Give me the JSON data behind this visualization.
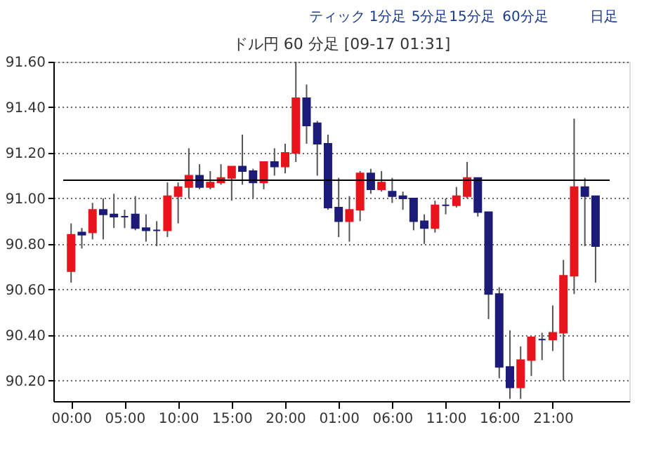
{
  "chart_data": {
    "type": "candlestick",
    "title": "ドル円 60 分足 [09-17 01:31]",
    "annotations": [
      "ティック",
      "1分足",
      "5分足",
      "15分足",
      "60分足",
      "日足"
    ],
    "categories": [
      "00:00",
      null,
      null,
      null,
      null,
      "05:00",
      null,
      null,
      null,
      null,
      "10:00",
      null,
      null,
      null,
      null,
      "15:00",
      null,
      null,
      null,
      null,
      "20:00",
      null,
      null,
      null,
      null,
      "01:00",
      null,
      null,
      null,
      null,
      "06:00",
      null,
      null,
      null,
      null,
      "11:00",
      null,
      null,
      null,
      null,
      "16:00",
      null,
      null,
      null,
      null,
      "21:00",
      null,
      null,
      null,
      null
    ],
    "ohlc": [
      [
        90.68,
        90.89,
        90.63,
        90.84
      ],
      [
        90.85,
        90.87,
        90.78,
        90.84
      ],
      [
        90.85,
        90.98,
        90.82,
        90.95
      ],
      [
        90.95,
        91.0,
        90.82,
        90.93
      ],
      [
        90.93,
        91.02,
        90.87,
        90.92
      ],
      [
        90.92,
        90.95,
        90.87,
        90.92
      ],
      [
        90.93,
        91.01,
        90.86,
        90.87
      ],
      [
        90.87,
        90.93,
        90.81,
        90.86
      ],
      [
        90.86,
        90.9,
        90.79,
        90.86
      ],
      [
        90.86,
        91.07,
        90.83,
        91.01
      ],
      [
        91.01,
        91.07,
        90.89,
        91.05
      ],
      [
        91.05,
        91.22,
        91.0,
        91.1
      ],
      [
        91.1,
        91.15,
        91.04,
        91.05
      ],
      [
        91.05,
        91.12,
        91.04,
        91.07
      ],
      [
        91.07,
        91.15,
        91.06,
        91.09
      ],
      [
        91.09,
        91.14,
        90.99,
        91.14
      ],
      [
        91.14,
        91.28,
        91.06,
        91.12
      ],
      [
        91.12,
        91.13,
        91.0,
        91.07
      ],
      [
        91.07,
        91.16,
        91.04,
        91.16
      ],
      [
        91.16,
        91.22,
        91.1,
        91.14
      ],
      [
        91.14,
        91.24,
        91.11,
        91.2
      ],
      [
        91.2,
        91.6,
        91.16,
        91.44
      ],
      [
        91.44,
        91.5,
        91.24,
        91.32
      ],
      [
        91.33,
        91.34,
        91.1,
        91.24
      ],
      [
        91.24,
        91.28,
        90.95,
        90.96
      ],
      [
        90.96,
        91.09,
        90.83,
        90.9
      ],
      [
        90.9,
        91.01,
        90.81,
        90.95
      ],
      [
        90.95,
        91.12,
        90.9,
        91.11
      ],
      [
        91.11,
        91.13,
        91.02,
        91.04
      ],
      [
        91.04,
        91.12,
        91.03,
        91.07
      ],
      [
        91.03,
        91.09,
        90.98,
        91.01
      ],
      [
        91.01,
        91.03,
        90.95,
        91.0
      ],
      [
        91.0,
        91.0,
        90.86,
        90.9
      ],
      [
        90.9,
        90.93,
        90.8,
        90.87
      ],
      [
        90.87,
        90.99,
        90.85,
        90.97
      ],
      [
        90.97,
        91.0,
        90.93,
        90.97
      ],
      [
        90.97,
        91.05,
        90.96,
        91.01
      ],
      [
        91.01,
        91.16,
        91.0,
        91.09
      ],
      [
        91.09,
        91.09,
        90.92,
        90.94
      ],
      [
        90.94,
        90.94,
        90.47,
        90.58
      ],
      [
        90.58,
        90.61,
        90.21,
        90.26
      ],
      [
        90.26,
        90.42,
        90.12,
        90.17
      ],
      [
        90.17,
        90.35,
        90.12,
        90.29
      ],
      [
        90.29,
        90.39,
        90.22,
        90.39
      ],
      [
        90.38,
        90.41,
        90.29,
        90.38
      ],
      [
        90.38,
        90.53,
        90.33,
        90.41
      ],
      [
        90.41,
        90.73,
        90.2,
        90.66
      ],
      [
        90.66,
        91.35,
        90.58,
        91.05
      ],
      [
        91.05,
        91.09,
        90.79,
        91.01
      ],
      [
        91.01,
        91.01,
        90.63,
        90.79
      ]
    ],
    "colors": [
      "#e8141c",
      "#1c1c78",
      "#e8141c",
      "#1c1c78",
      "#1c1c78",
      "#1c1c78",
      "#1c1c78",
      "#1c1c78",
      "#1c1c78",
      "#e8141c",
      "#e8141c",
      "#e8141c",
      "#1c1c78",
      "#e8141c",
      "#e8141c",
      "#e8141c",
      "#1c1c78",
      "#1c1c78",
      "#e8141c",
      "#1c1c78",
      "#e8141c",
      "#e8141c",
      "#1c1c78",
      "#1c1c78",
      "#1c1c78",
      "#1c1c78",
      "#e8141c",
      "#e8141c",
      "#1c1c78",
      "#e8141c",
      "#1c1c78",
      "#1c1c78",
      "#1c1c78",
      "#1c1c78",
      "#e8141c",
      "#1c1c78",
      "#e8141c",
      "#e8141c",
      "#1c1c78",
      "#1c1c78",
      "#1c1c78",
      "#1c1c78",
      "#e8141c",
      "#e8141c",
      "#1c1c78",
      "#e8141c",
      "#e8141c",
      "#e8141c",
      "#1c1c78",
      "#1c1c78"
    ],
    "ylim": [
      90.11,
      91.6
    ],
    "yticks": [
      {
        "value": 90.2,
        "label": "90.20"
      },
      {
        "value": 90.4,
        "label": "90.40"
      },
      {
        "value": 90.6,
        "label": "90.60"
      },
      {
        "value": 90.8,
        "label": "90.80"
      },
      {
        "value": 91.0,
        "label": "91.00"
      },
      {
        "value": 91.2,
        "label": "91.20"
      },
      {
        "value": 91.4,
        "label": "91.40"
      },
      {
        "value": 91.6,
        "label": "91.60"
      }
    ],
    "ref_lines": [
      {
        "axis": "y",
        "value": 91.08,
        "color": "#000000"
      }
    ],
    "grid": "y"
  }
}
